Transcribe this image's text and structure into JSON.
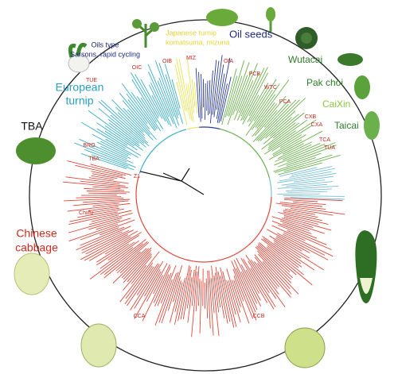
{
  "groups": [
    {
      "lines": [
        "Oils type",
        "Sarsons, rapid cycling"
      ],
      "color": "#1f2a80"
    },
    {
      "lines": [
        "Japanese turnip",
        "komatsuma, mizuna"
      ],
      "color": "#e6d43a"
    },
    {
      "lines": [
        "Oil seeds"
      ],
      "color": "#1f2a80"
    },
    {
      "lines": [
        "Wutacai"
      ],
      "color": "#2f7d2a"
    },
    {
      "lines": [
        "Pak choi"
      ],
      "color": "#2f7d2a"
    },
    {
      "lines": [
        "CaiXin"
      ],
      "color": "#8cc63f"
    },
    {
      "lines": [
        "Taicai"
      ],
      "color": "#2f7d2a"
    },
    {
      "lines": [
        "European",
        "turnip"
      ],
      "color": "#2a9fc0"
    },
    {
      "lines": [
        "TBA"
      ],
      "color": "#111111"
    },
    {
      "lines": [
        "Chinese",
        "cabbage"
      ],
      "color": "#d42a1e"
    }
  ],
  "clades": [
    "TUE",
    "OIC",
    "OIB",
    "MIZ",
    "OIA",
    "PCB",
    "WTC",
    "PCA",
    "CXB",
    "CXA",
    "TCA",
    "TUA",
    "BRO",
    "TBA",
    "Z1",
    "Chiifu",
    "CCA",
    "CCB"
  ]
}
